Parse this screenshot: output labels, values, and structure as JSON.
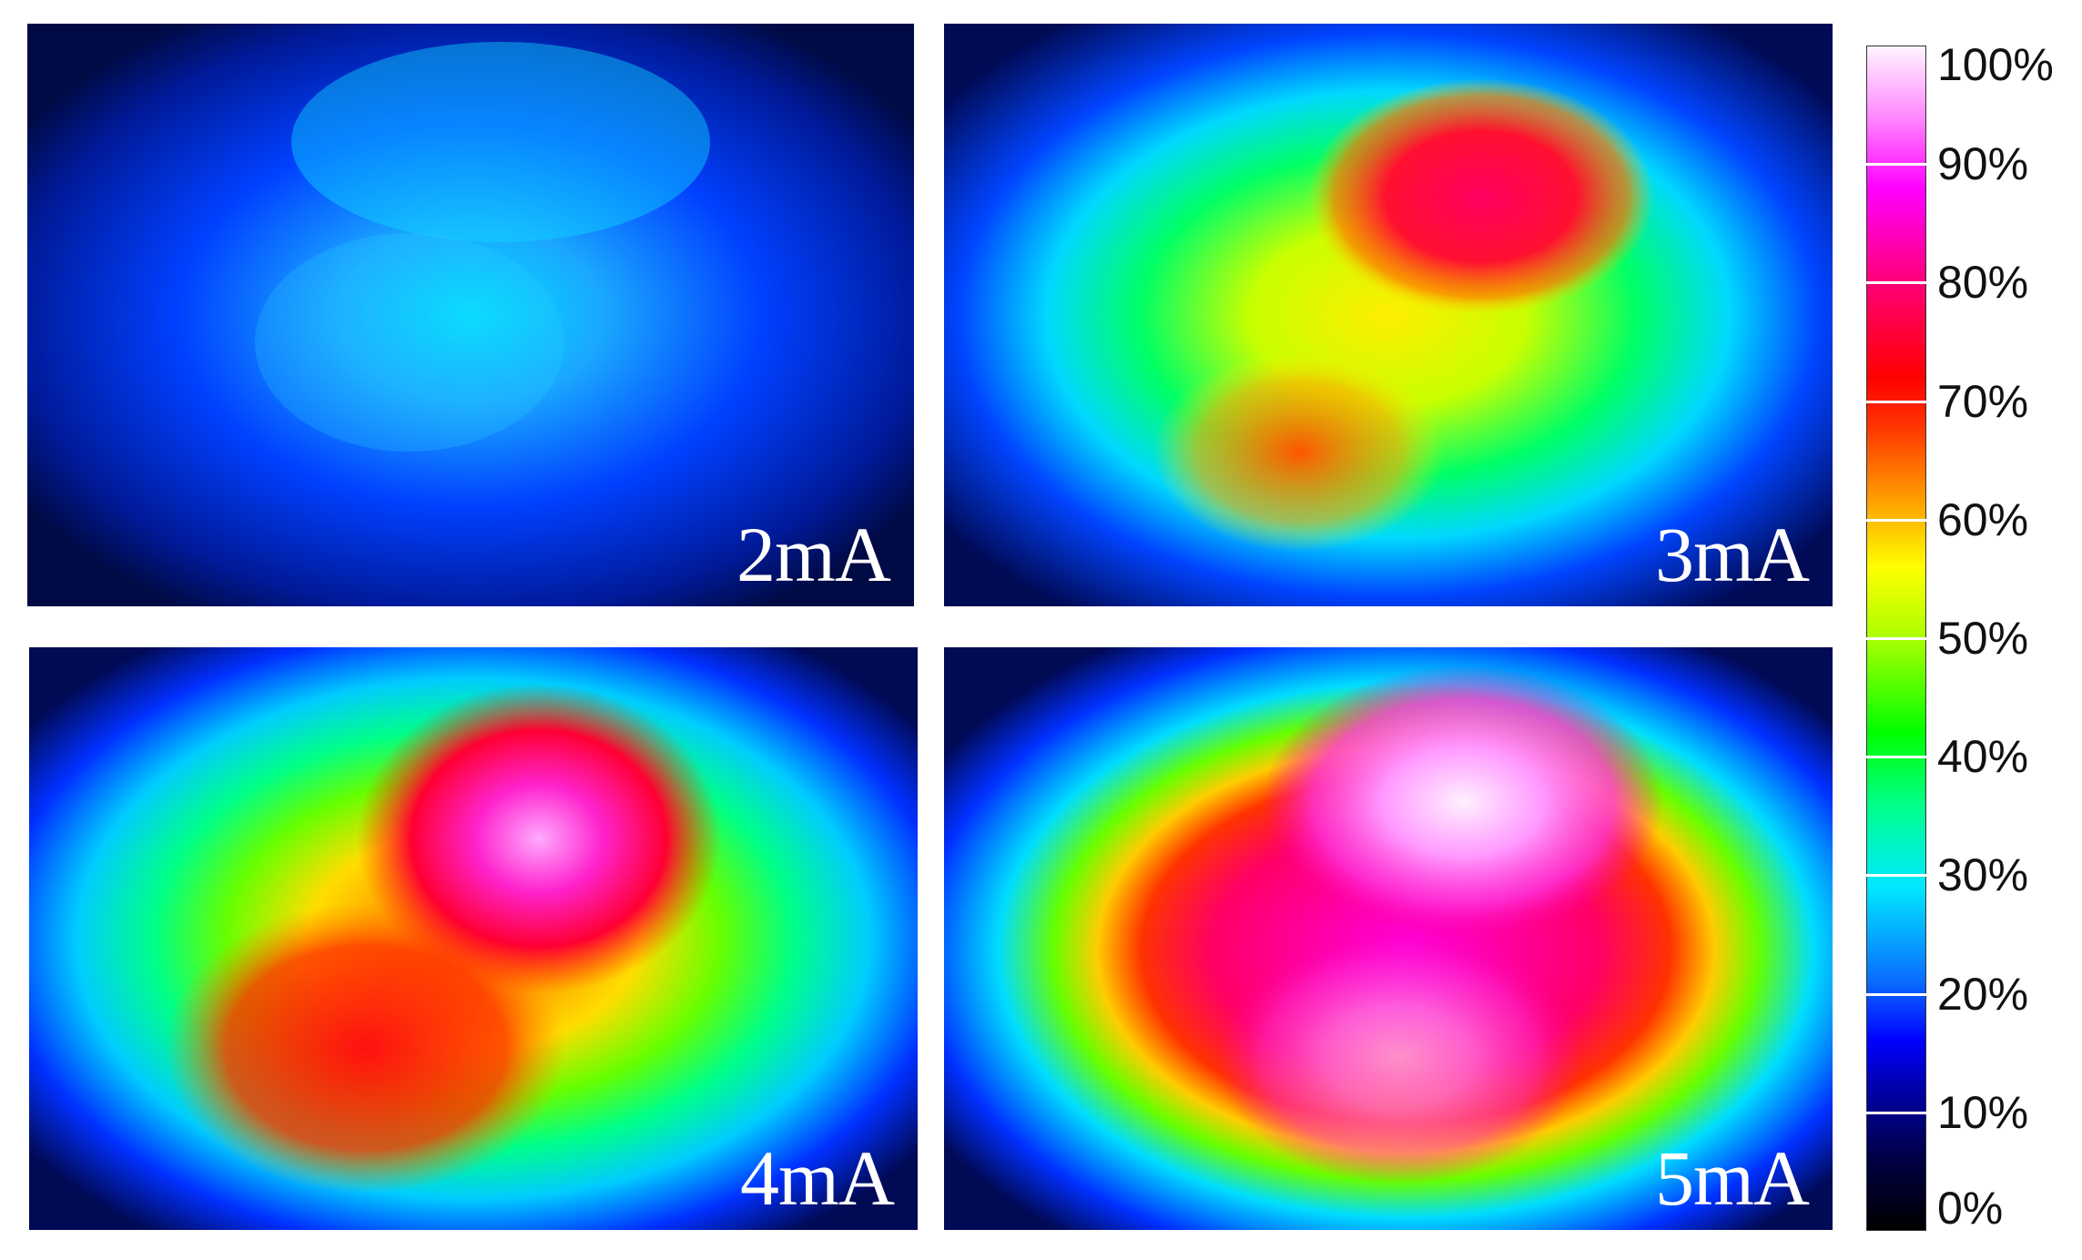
{
  "panels": [
    {
      "label": "2mA",
      "level": 0.2
    },
    {
      "label": "3mA",
      "level": 0.55
    },
    {
      "label": "4mA",
      "level": 0.75
    },
    {
      "label": "5mA",
      "level": 0.92
    }
  ],
  "colorbar": {
    "ticks": [
      "100%",
      "90%",
      "80%",
      "70%",
      "60%",
      "50%",
      "40%",
      "30%",
      "20%",
      "10%",
      "0%"
    ]
  }
}
